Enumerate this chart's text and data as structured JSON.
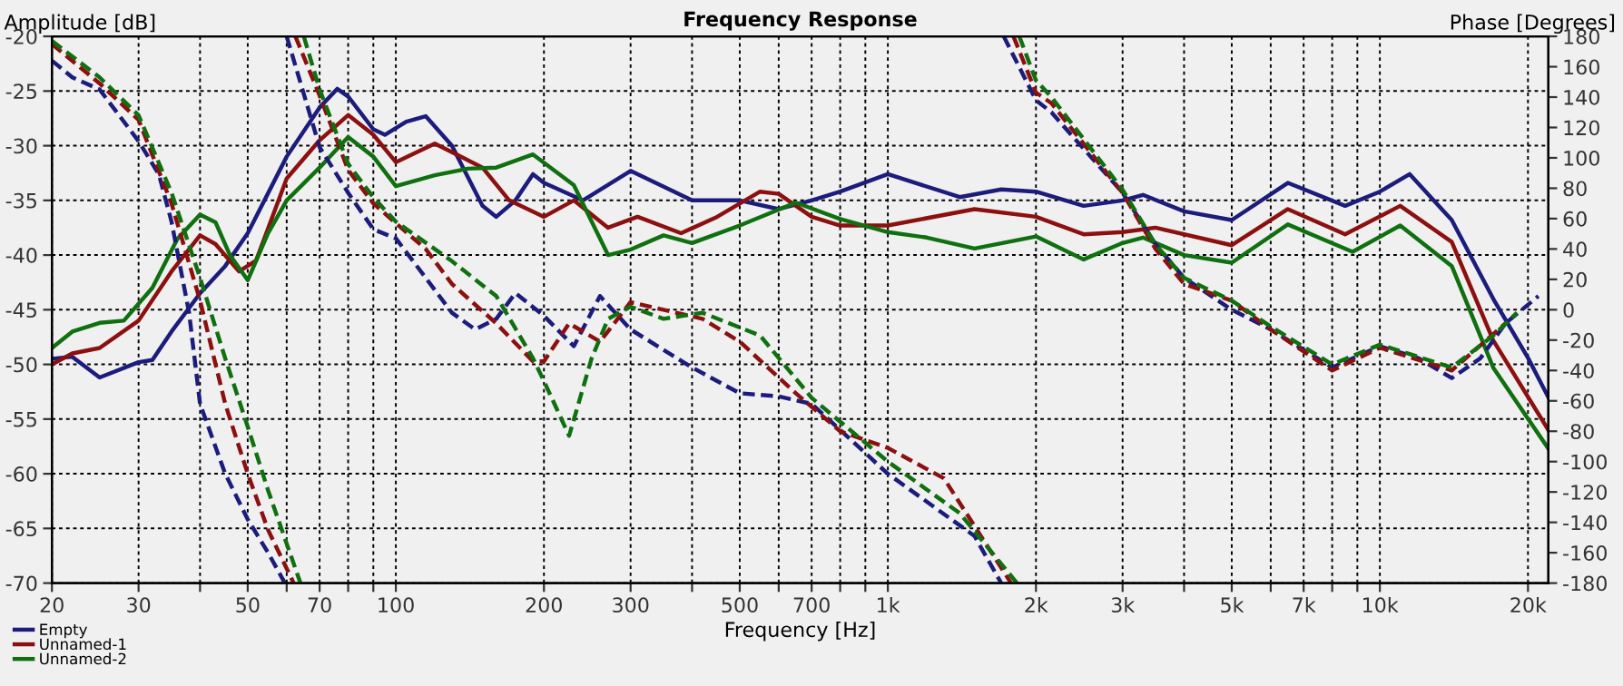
{
  "chart_data": {
    "type": "line",
    "title": "Frequency Response",
    "xlabel": "Frequency [Hz]",
    "ylabel": "Amplitude [dB]",
    "y2label": "Phase [Degrees]",
    "log": "x",
    "grid": true,
    "legend": "bottom left",
    "marker": "none",
    "xlim": [
      20,
      22000
    ],
    "xticks": [
      20,
      30,
      {
        "value": 40,
        "label": null
      },
      50,
      {
        "value": 60,
        "label": null
      },
      70,
      {
        "value": 80,
        "label": null
      },
      {
        "value": 90,
        "label": null
      },
      100,
      200,
      300,
      {
        "value": 400,
        "label": null
      },
      500,
      {
        "value": 600,
        "label": null
      },
      700,
      {
        "value": 800,
        "label": null
      },
      {
        "value": 900,
        "label": null
      },
      {
        "value": 1000,
        "label": "1k"
      },
      {
        "value": 2000,
        "label": "2k"
      },
      {
        "value": 3000,
        "label": "3k"
      },
      {
        "value": 4000,
        "label": null
      },
      {
        "value": 5000,
        "label": "5k"
      },
      {
        "value": 6000,
        "label": null
      },
      {
        "value": 7000,
        "label": "7k"
      },
      {
        "value": 8000,
        "label": null
      },
      {
        "value": 9000,
        "label": null
      },
      {
        "value": 10000,
        "label": "10k"
      },
      {
        "value": 20000,
        "label": "20k"
      }
    ],
    "ylim": [
      -70,
      -20
    ],
    "yticks": [
      -70,
      -65,
      -60,
      -55,
      -50,
      -45,
      -40,
      -35,
      -30,
      -25,
      -20
    ],
    "y2lim": [
      -180,
      180
    ],
    "y2ticks": [
      -180,
      -160,
      -140,
      -120,
      -100,
      -80,
      -60,
      -40,
      -20,
      0,
      20,
      40,
      60,
      80,
      100,
      120,
      140,
      160,
      180
    ],
    "series": [
      {
        "name": "Empty",
        "color": "#1c1c7c",
        "line_style": "solid",
        "x": [
          20,
          22,
          25,
          30,
          32,
          35,
          40,
          45,
          50,
          60,
          70,
          76,
          80,
          90,
          95,
          105,
          115,
          130,
          150,
          160,
          175,
          190,
          200,
          240,
          300,
          400,
          500,
          600,
          700,
          800,
          1000,
          1400,
          1700,
          2000,
          2500,
          3000,
          3300,
          4000,
          5000,
          6500,
          8500,
          10000,
          11500,
          14000,
          17000,
          20000,
          22000
        ],
        "values": [
          -49.5,
          -49.3,
          -51.2,
          -49.8,
          -49.6,
          -47,
          -43.5,
          -41,
          -38,
          -31,
          -26.5,
          -24.8,
          -25.5,
          -28.5,
          -29,
          -27.8,
          -27.3,
          -30,
          -35.5,
          -36.5,
          -35,
          -32.6,
          -33.4,
          -35,
          -32.3,
          -35,
          -35,
          -35.8,
          -35,
          -34.2,
          -32.6,
          -34.7,
          -34,
          -34.2,
          -35.5,
          -35,
          -34.5,
          -36,
          -36.8,
          -33.4,
          -35.5,
          -34.2,
          -32.6,
          -36.8,
          -44,
          -49.4,
          -53
        ]
      },
      {
        "name": "Unnamed-1",
        "color": "#8c1010",
        "line_style": "solid",
        "x": [
          20,
          22,
          25,
          30,
          35,
          40,
          43,
          48,
          52,
          60,
          70,
          80,
          90,
          100,
          120,
          150,
          170,
          200,
          230,
          270,
          310,
          380,
          450,
          550,
          600,
          700,
          800,
          1000,
          1500,
          2000,
          2500,
          3000,
          3500,
          5000,
          6500,
          8500,
          11000,
          14000,
          17000,
          22000
        ],
        "values": [
          -50,
          -49,
          -48.5,
          -46,
          -41.5,
          -38.2,
          -39,
          -41.5,
          -40.5,
          -33,
          -29.5,
          -27.2,
          -29,
          -31.5,
          -29.8,
          -32,
          -35,
          -36.5,
          -35,
          -37.5,
          -36.5,
          -38,
          -36.5,
          -34.2,
          -34.4,
          -36.5,
          -37.3,
          -37.3,
          -35.8,
          -36.5,
          -38.1,
          -37.9,
          -37.5,
          -39.1,
          -35.8,
          -38.1,
          -35.5,
          -38.8,
          -47.8,
          -56
        ]
      },
      {
        "name": "Unnamed-2",
        "color": "#107010",
        "line_style": "solid",
        "x": [
          20,
          22,
          25,
          28,
          32,
          36,
          40,
          43,
          46,
          50,
          55,
          60,
          70,
          80,
          90,
          100,
          120,
          140,
          160,
          190,
          230,
          270,
          300,
          350,
          400,
          500,
          650,
          800,
          1000,
          1200,
          1500,
          2000,
          2500,
          3000,
          3300,
          4000,
          5000,
          6500,
          8800,
          11000,
          14000,
          17000,
          22000
        ],
        "values": [
          -48.5,
          -47,
          -46.2,
          -46,
          -43,
          -38.5,
          -36.3,
          -37,
          -40,
          -42.3,
          -38,
          -35,
          -32,
          -29.2,
          -31,
          -33.7,
          -32.7,
          -32.1,
          -32,
          -30.8,
          -33.6,
          -40,
          -39.5,
          -38.2,
          -38.9,
          -37.3,
          -35.2,
          -36.7,
          -37.9,
          -38.4,
          -39.4,
          -38.3,
          -40.4,
          -38.9,
          -38.4,
          -40,
          -40.7,
          -37.2,
          -39.7,
          -37.3,
          -41,
          -50.3,
          -57.7
        ]
      },
      {
        "color": "#1c1c7c",
        "line_style": "dashed",
        "axis": "y2",
        "x": [
          20,
          22,
          25,
          30,
          33,
          35,
          38,
          40,
          45,
          50,
          55,
          59.5,
          59.6,
          60,
          70,
          80,
          90,
          100,
          115,
          130,
          145,
          160,
          175,
          200,
          230,
          260,
          300,
          400,
          500,
          600,
          700,
          1000,
          1500,
          1700,
          1710,
          1720,
          2000,
          2150,
          3000,
          3500,
          4000,
          5000,
          6000,
          8000,
          10000,
          12000,
          14000,
          16000,
          18000,
          21000
        ],
        "values": [
          164,
          153,
          145,
          111,
          89,
          58,
          -2,
          -62,
          -108,
          -138,
          -160,
          -180,
          null,
          180,
          107,
          77,
          53,
          47,
          21,
          -2,
          -13,
          -6,
          11,
          -4,
          -24,
          9,
          -13,
          -38,
          -55,
          -57,
          -62,
          -108,
          -149,
          -180,
          null,
          180,
          138,
          130,
          77,
          43,
          21,
          0,
          -13,
          -38,
          -24,
          -32,
          -45,
          -32,
          -9,
          9
        ]
      },
      {
        "color": "#8c1010",
        "line_style": "dashed",
        "axis": "y2",
        "x": [
          20,
          25,
          30,
          35,
          40,
          45,
          50,
          55,
          62,
          62.2,
          62.5,
          70,
          80,
          90,
          100,
          115,
          130,
          160,
          190,
          200,
          225,
          260,
          300,
          420,
          500,
          650,
          800,
          1000,
          1300,
          1780,
          1790,
          1800,
          2000,
          2150,
          3000,
          3500,
          4000,
          5000,
          6000,
          8000,
          10000,
          14000,
          18000
        ],
        "values": [
          175,
          149,
          125,
          70,
          6,
          -62,
          -108,
          -145,
          -180,
          null,
          180,
          141,
          92,
          70,
          57,
          40,
          17,
          -9,
          -34,
          -34,
          -9,
          -21,
          5,
          -6,
          -21,
          -55,
          -80,
          -91,
          -111,
          -180,
          null,
          180,
          143,
          136,
          77,
          40,
          17,
          6,
          -13,
          -40,
          -25,
          -40,
          -9
        ]
      },
      {
        "color": "#107010",
        "line_style": "dashed",
        "axis": "y2",
        "x": [
          20,
          25,
          30,
          35,
          40,
          45,
          50,
          55,
          64,
          64.2,
          65,
          70,
          80,
          90,
          100,
          130,
          160,
          190,
          200,
          225,
          250,
          270,
          300,
          350,
          420,
          550,
          700,
          1000,
          1400,
          1830,
          1840,
          1850,
          2000,
          2150,
          3000,
          3500,
          4000,
          5000,
          6000,
          8000,
          10000,
          14000,
          17000,
          19000
        ],
        "values": [
          177,
          153,
          128,
          77,
          21,
          -32,
          -77,
          -119,
          -180,
          null,
          180,
          145,
          96,
          74,
          58,
          32,
          9,
          -32,
          -47,
          -83,
          -32,
          -6,
          2,
          -6,
          -2,
          -17,
          -58,
          -100,
          -134,
          -180,
          null,
          180,
          151,
          140,
          79,
          43,
          21,
          6,
          -11,
          -36,
          -23,
          -38,
          -17,
          -2
        ]
      }
    ]
  }
}
